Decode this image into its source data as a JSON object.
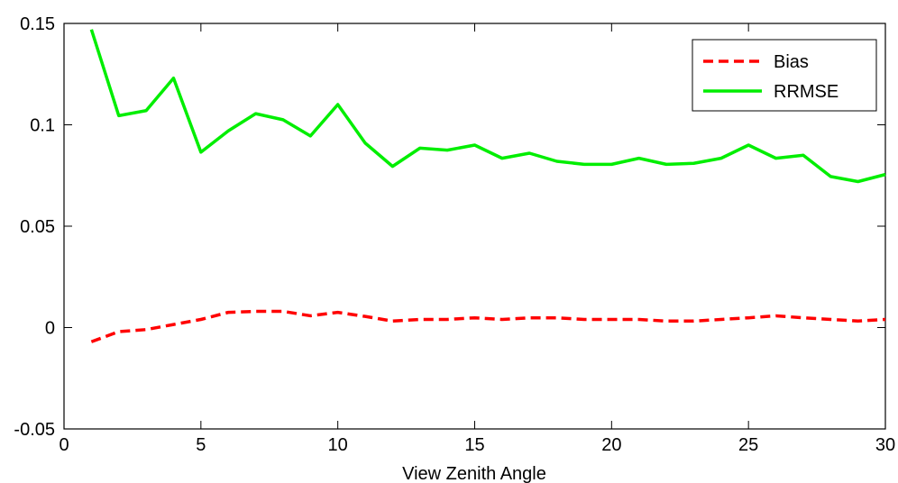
{
  "chart_data": {
    "type": "line",
    "title": "",
    "xlabel": "View Zenith Angle",
    "ylabel": "",
    "xlim": [
      0,
      30
    ],
    "ylim": [
      -0.05,
      0.15
    ],
    "grid": false,
    "legend_position": "top-right",
    "xticks": [
      "0",
      "5",
      "10",
      "15",
      "20",
      "25",
      "30"
    ],
    "yticks": [
      "-0.05",
      "0",
      "0.05",
      "0.1",
      "0.15"
    ],
    "x": [
      1,
      2,
      3,
      4,
      5,
      6,
      7,
      8,
      9,
      10,
      11,
      12,
      13,
      14,
      15,
      16,
      17,
      18,
      19,
      20,
      21,
      22,
      23,
      24,
      25,
      26,
      27,
      28,
      29,
      30
    ],
    "series": [
      {
        "name": "Bias",
        "color": "#ff0000",
        "style": "dashed",
        "values": [
          -0.007,
          -0.002,
          -0.001,
          0.0015,
          0.004,
          0.0075,
          0.008,
          0.008,
          0.0058,
          0.0075,
          0.0055,
          0.0032,
          0.004,
          0.004,
          0.0048,
          0.004,
          0.0048,
          0.0048,
          0.004,
          0.004,
          0.004,
          0.0032,
          0.0032,
          0.004,
          0.0048,
          0.0058,
          0.0048,
          0.004,
          0.0032,
          0.004
        ]
      },
      {
        "name": "RRMSE",
        "color": "#00ee00",
        "style": "solid",
        "values": [
          0.147,
          0.1045,
          0.107,
          0.123,
          0.0865,
          0.097,
          0.1055,
          0.1025,
          0.0945,
          0.11,
          0.091,
          0.0795,
          0.0885,
          0.0875,
          0.09,
          0.0835,
          0.086,
          0.082,
          0.0805,
          0.0805,
          0.0835,
          0.0805,
          0.081,
          0.0835,
          0.09,
          0.0835,
          0.085,
          0.0745,
          0.072,
          0.0755
        ]
      }
    ]
  }
}
